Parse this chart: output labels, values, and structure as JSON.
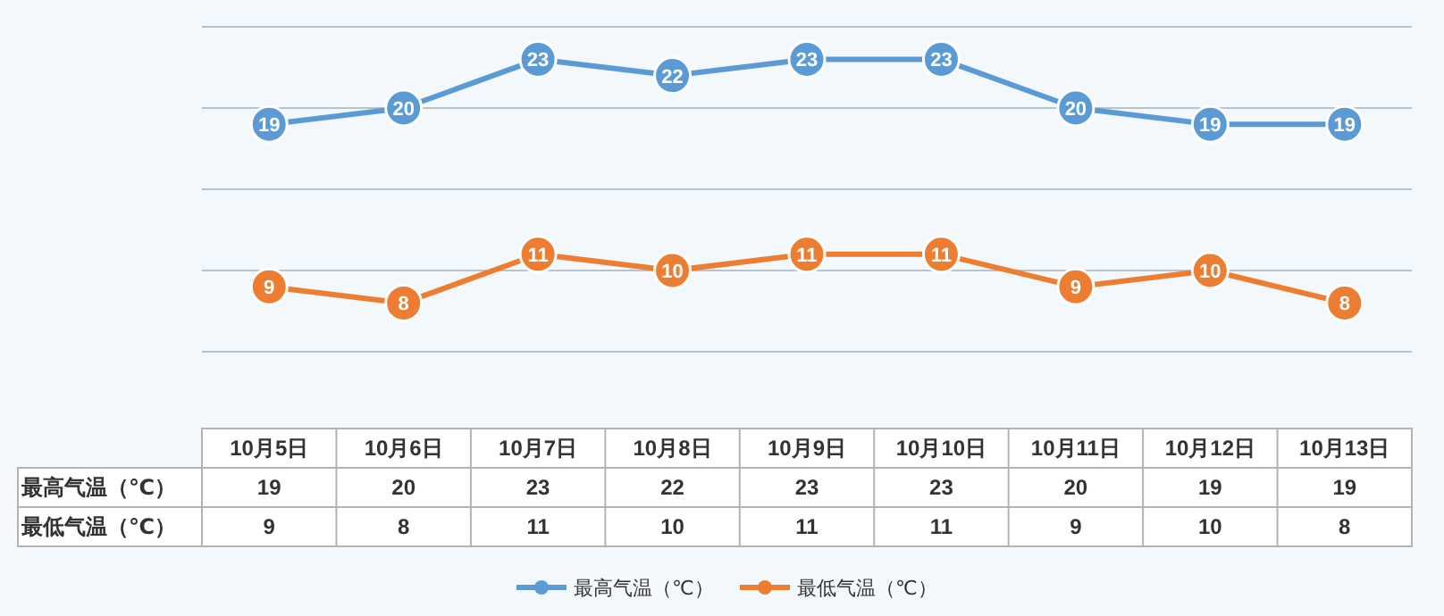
{
  "chart_data": [
    {
      "type": "line",
      "categories": [
        null,
        null,
        null,
        null,
        null,
        null,
        null,
        null,
        null
      ],
      "series": [
        {
          "name": "最高气温（℃）",
          "color": "#5b9bd5",
          "values": [
            19,
            20,
            23,
            22,
            23,
            23,
            20,
            19,
            19
          ],
          "value_labels": [
            "19",
            "20",
            "23",
            "22",
            "23",
            "23",
            "20",
            "19",
            "19"
          ]
        },
        {
          "name": "最低气温（℃）",
          "color": "#ed7d31",
          "values": [
            9,
            8,
            11,
            10,
            11,
            11,
            9,
            10,
            8
          ],
          "value_labels": [
            "9",
            "8",
            "11",
            "10",
            "11",
            "11",
            "9",
            "10",
            "8"
          ]
        }
      ],
      "ylim": [
        5,
        25
      ],
      "yticks": [
        {
          "value": 5,
          "label": null
        },
        {
          "value": 10,
          "label": null
        },
        {
          "value": 15,
          "label": null
        },
        {
          "value": 20,
          "label": null
        },
        {
          "value": 25,
          "label": null
        }
      ],
      "grid": "y",
      "legend": "bottom",
      "marker": "circle",
      "line_style": "solid"
    },
    {
      "type": "heatmap",
      "categories": [
        "10月5日",
        "10月6日",
        "10月7日",
        "10月8日",
        "10月9日",
        "10月10日",
        "10月11日",
        "10月12日",
        "10月13日"
      ],
      "y_categories": [
        "最高气温（℃）",
        "最低气温（℃）"
      ],
      "cells": [
        [
          19,
          20,
          23,
          22,
          23,
          23,
          20,
          19,
          19
        ],
        [
          9,
          8,
          11,
          10,
          11,
          11,
          9,
          10,
          8
        ]
      ],
      "data_labels": true
    }
  ]
}
